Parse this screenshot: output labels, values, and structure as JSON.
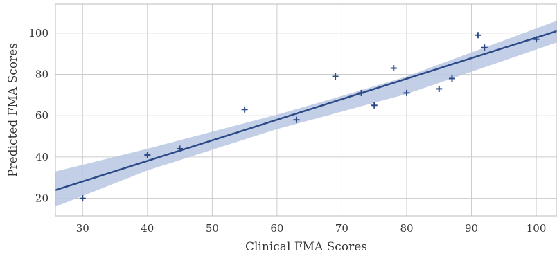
{
  "chart_data": {
    "type": "scatter",
    "title": "",
    "xlabel": "Clinical FMA Scores",
    "ylabel": "Predicted FMA Scores",
    "xlim": [
      25.8,
      103.2
    ],
    "ylim": [
      11.5,
      114
    ],
    "xticks": [
      30,
      40,
      50,
      60,
      70,
      80,
      90,
      100
    ],
    "yticks": [
      20,
      40,
      60,
      80,
      100
    ],
    "grid": true,
    "points": [
      {
        "x": 30,
        "y": 20
      },
      {
        "x": 40,
        "y": 41
      },
      {
        "x": 45,
        "y": 44
      },
      {
        "x": 55,
        "y": 63
      },
      {
        "x": 63,
        "y": 58
      },
      {
        "x": 69,
        "y": 79
      },
      {
        "x": 73,
        "y": 71
      },
      {
        "x": 75,
        "y": 65
      },
      {
        "x": 78,
        "y": 83
      },
      {
        "x": 80,
        "y": 71
      },
      {
        "x": 85,
        "y": 73
      },
      {
        "x": 87,
        "y": 78
      },
      {
        "x": 91,
        "y": 99
      },
      {
        "x": 92,
        "y": 93
      },
      {
        "x": 100,
        "y": 97
      }
    ],
    "regression_line": {
      "x": [
        25.8,
        103.2
      ],
      "y": [
        24.0,
        101.0
      ]
    },
    "confidence_band": {
      "x": [
        25.8,
        40,
        60,
        70,
        80,
        103.2
      ],
      "upper": [
        33.0,
        44.0,
        60.5,
        69.5,
        79.0,
        106.0
      ],
      "lower": [
        16.0,
        33.5,
        53.5,
        62.0,
        70.5,
        95.5
      ]
    },
    "colors": {
      "marker": "#2b4a86",
      "line": "#2b4a86",
      "band": "#b9c6e3",
      "grid": "#cccccc",
      "frame": "#bbbbbb"
    },
    "marker_symbol": "+"
  }
}
